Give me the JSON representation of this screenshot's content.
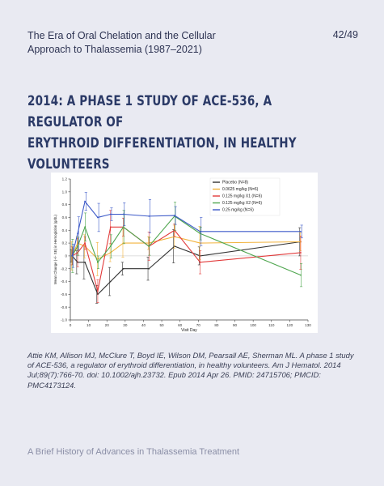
{
  "header": {
    "title_line1": "The Era of Oral Chelation and the Cellular",
    "title_line2": "Approach to Thalassemia  (1987–2021)",
    "page": "42/49"
  },
  "slide": {
    "title_line1": "2014: A Phase 1 Study of ACE-536, a Regulator of",
    "title_line2": "Erythroid Differentiation, in Healthy Volunteers"
  },
  "chart_data": {
    "type": "line",
    "xlabel": "Visit Day",
    "ylabel": "Mean Change (+/- SE) in Hemoglobin (g/dL)",
    "xlim": [
      0,
      130
    ],
    "ylim": [
      -1.0,
      1.2
    ],
    "xticks": [
      "0",
      "10",
      "20",
      "30",
      "40",
      "50",
      "60",
      "70",
      "80",
      "90",
      "100",
      "110",
      "120",
      "130"
    ],
    "yticks": [
      "-1.0",
      "-0.8",
      "-0.6",
      "-0.4",
      "-0.2",
      "0",
      "0.2",
      "0.4",
      "0.6",
      "0.8",
      "1.0",
      "1.2"
    ],
    "legend_position": "top-right",
    "x": [
      1,
      4,
      8,
      15,
      22,
      29,
      43,
      57,
      71,
      126
    ],
    "series": [
      {
        "name": "Placebo (N=8)",
        "color": "#333333",
        "values": [
          0.0,
          -0.1,
          -0.1,
          -0.6,
          -0.4,
          -0.2,
          -0.2,
          0.15,
          0.0,
          0.22
        ]
      },
      {
        "name": "0.0625 mg/kg (N=6)",
        "color": "#f2b33d",
        "values": [
          0.0,
          0.2,
          0.15,
          -0.05,
          0.05,
          0.2,
          0.2,
          0.3,
          0.2,
          0.22
        ]
      },
      {
        "name": "0.125 mg/kg X1 (N=6)",
        "color": "#e23b3b",
        "values": [
          0.0,
          0.05,
          0.2,
          -0.55,
          0.45,
          0.45,
          0.15,
          0.4,
          -0.1,
          0.05
        ]
      },
      {
        "name": "0.125 mg/kg X2 (N=6)",
        "color": "#4fa64f",
        "values": [
          0.0,
          0.15,
          0.45,
          -0.1,
          0.15,
          0.45,
          0.15,
          0.62,
          0.35,
          -0.3
        ]
      },
      {
        "name": "0.25 mg/kg (N=6)",
        "color": "#3c59c8",
        "values": [
          0.0,
          0.35,
          0.85,
          0.6,
          0.65,
          0.65,
          0.62,
          0.63,
          0.38,
          0.38
        ]
      }
    ]
  },
  "caption": "Attie KM, Allison MJ, McClure T, Boyd IE, Wilson DM, Pearsall AE, Sherman ML. A phase 1 study of ACE-536, a regulator of erythroid differentiation, in healthy volunteers. Am J Hematol. 2014 Jul;89(7):766-70. doi: 10.1002/ajh.23732. Epub 2014 Apr 26. PMID: 24715706; PMCID: PMC4173124.",
  "footer": "A Brief History of Advances in Thalassemia Treatment"
}
